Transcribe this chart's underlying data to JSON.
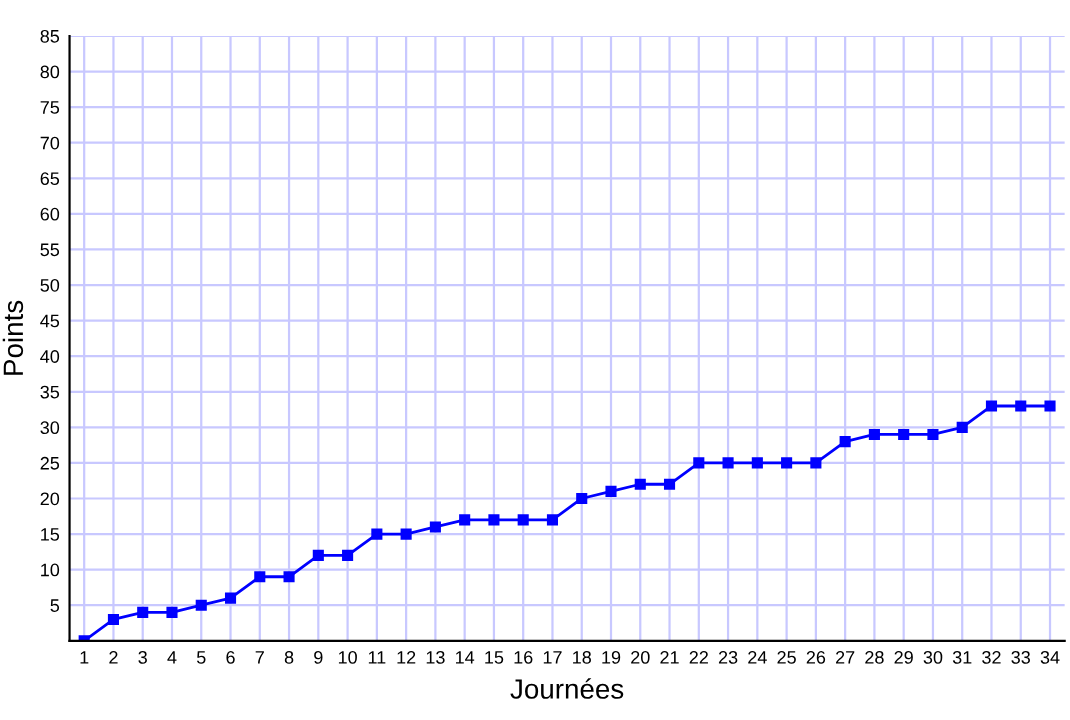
{
  "chart_data": {
    "type": "line",
    "xlabel": "Journées",
    "ylabel": "Points",
    "categories": [
      "1",
      "2",
      "3",
      "4",
      "5",
      "6",
      "7",
      "8",
      "9",
      "10",
      "11",
      "12",
      "13",
      "14",
      "15",
      "16",
      "17",
      "18",
      "19",
      "20",
      "21",
      "22",
      "23",
      "24",
      "25",
      "26",
      "27",
      "28",
      "29",
      "30",
      "31",
      "32",
      "33",
      "34"
    ],
    "series": [
      {
        "color": "#0000ff",
        "values": [
          0,
          3,
          4,
          4,
          5,
          6,
          9,
          9,
          12,
          12,
          15,
          15,
          16,
          17,
          17,
          17,
          17,
          20,
          21,
          22,
          22,
          25,
          25,
          25,
          25,
          25,
          28,
          29,
          29,
          29,
          30,
          33,
          33,
          33
        ]
      }
    ],
    "ylim": [
      0,
      85
    ],
    "yticks": [
      5,
      10,
      15,
      20,
      25,
      30,
      35,
      40,
      45,
      50,
      55,
      60,
      65,
      70,
      75,
      80,
      85
    ],
    "grid": true,
    "marker": "square",
    "line_style": "solid"
  }
}
